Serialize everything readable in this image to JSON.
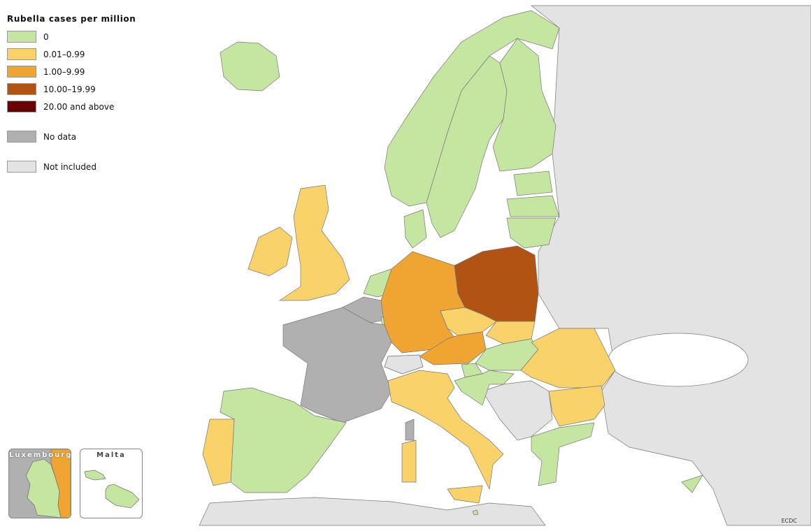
{
  "legend": {
    "title": "Rubella cases per million",
    "items": [
      {
        "label": "0",
        "color": "#c5e6a0"
      },
      {
        "label": "0.01–0.99",
        "color": "#f9d26a"
      },
      {
        "label": "1.00–9.99",
        "color": "#f0a431"
      },
      {
        "label": "10.00–19.99",
        "color": "#b05313"
      },
      {
        "label": "20.00 and above",
        "color": "#6b0000"
      },
      {
        "label": "No data",
        "color": "#b0b0b0"
      },
      {
        "label": "Not included",
        "color": "#e3e3e3"
      }
    ]
  },
  "countries": [
    {
      "name": "Iceland",
      "category": "0"
    },
    {
      "name": "Norway",
      "category": "0"
    },
    {
      "name": "Sweden",
      "category": "0"
    },
    {
      "name": "Finland",
      "category": "0"
    },
    {
      "name": "Estonia",
      "category": "0"
    },
    {
      "name": "Latvia",
      "category": "0"
    },
    {
      "name": "Lithuania",
      "category": "0"
    },
    {
      "name": "Denmark",
      "category": "0"
    },
    {
      "name": "United Kingdom",
      "category": "0.01–0.99"
    },
    {
      "name": "Ireland",
      "category": "0.01–0.99"
    },
    {
      "name": "Netherlands",
      "category": "0"
    },
    {
      "name": "Belgium",
      "category": "No data"
    },
    {
      "name": "Luxembourg",
      "category": "0"
    },
    {
      "name": "France",
      "category": "No data"
    },
    {
      "name": "Spain",
      "category": "0"
    },
    {
      "name": "Portugal",
      "category": "0.01–0.99"
    },
    {
      "name": "Germany",
      "category": "1.00–9.99"
    },
    {
      "name": "Poland",
      "category": "10.00–19.99"
    },
    {
      "name": "Czechia",
      "category": "0.01–0.99"
    },
    {
      "name": "Slovakia",
      "category": "0.01–0.99"
    },
    {
      "name": "Austria",
      "category": "1.00–9.99"
    },
    {
      "name": "Hungary",
      "category": "0"
    },
    {
      "name": "Slovenia",
      "category": "0"
    },
    {
      "name": "Croatia",
      "category": "0"
    },
    {
      "name": "Romania",
      "category": "0.01–0.99"
    },
    {
      "name": "Bulgaria",
      "category": "0.01–0.99"
    },
    {
      "name": "Greece",
      "category": "0"
    },
    {
      "name": "Italy",
      "category": "0.01–0.99"
    },
    {
      "name": "Malta",
      "category": "0"
    },
    {
      "name": "Cyprus",
      "category": "0"
    },
    {
      "name": "Switzerland",
      "category": "Not included"
    }
  ],
  "insets": {
    "luxembourg": "Luxembourg",
    "malta": "Malta"
  },
  "credit": "ECDC"
}
